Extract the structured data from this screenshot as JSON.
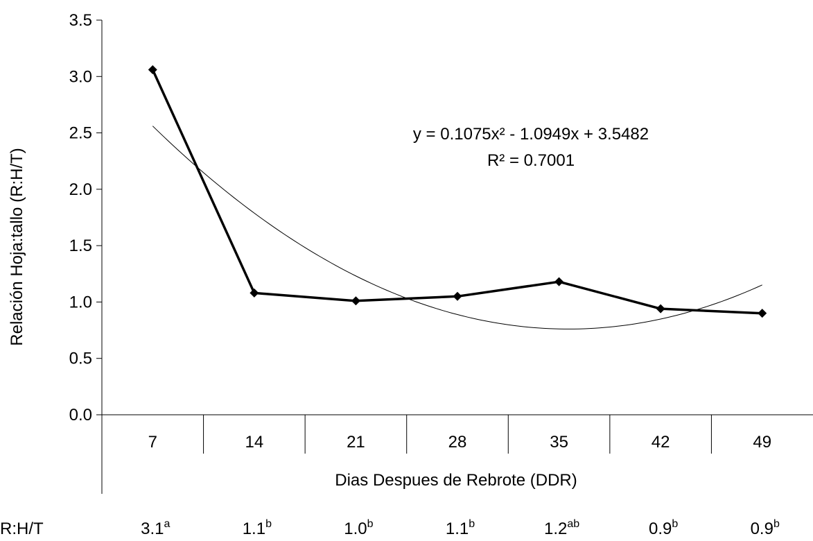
{
  "chart_data": {
    "type": "line",
    "title": "",
    "xlabel": "Dias Despues de Rebrote (DDR)",
    "ylabel": "Relación Hoja:tallo (R:H/T)",
    "ylim": [
      0,
      3.5
    ],
    "yticks": [
      "0.0",
      "0.5",
      "1.0",
      "1.5",
      "2.0",
      "2.5",
      "3.0",
      "3.5"
    ],
    "categories": [
      "7",
      "14",
      "21",
      "28",
      "35",
      "42",
      "49"
    ],
    "series": [
      {
        "values": [
          3.06,
          1.08,
          1.01,
          1.05,
          1.18,
          0.94,
          0.9
        ],
        "color": "#000000",
        "marker": "diamond"
      }
    ],
    "trendline": {
      "type": "polynomial",
      "coefficients": [
        0.1075,
        -1.0949,
        3.5482
      ],
      "equation": "y = 0.1075x² - 1.0949x + 3.5482",
      "r2": "R² = 0.7001"
    },
    "footer_row": {
      "label": "R:H/T",
      "values": [
        {
          "value": "3.1",
          "sup": "a"
        },
        {
          "value": "1.1",
          "sup": "b"
        },
        {
          "value": "1.0",
          "sup": "b"
        },
        {
          "value": "1.1",
          "sup": "b"
        },
        {
          "value": "1.2",
          "sup": "ab"
        },
        {
          "value": "0.9",
          "sup": "b"
        },
        {
          "value": "0.9",
          "sup": "b"
        }
      ]
    },
    "grid": false,
    "legend": "none"
  }
}
